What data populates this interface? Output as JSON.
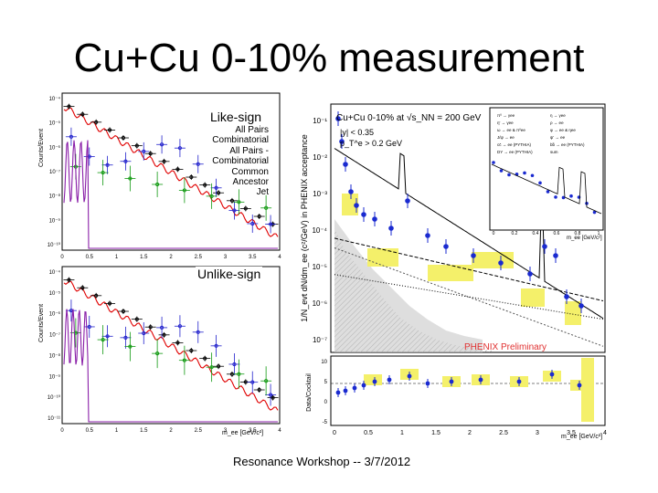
{
  "slide": {
    "title": "Cu+Cu 0-10% measurement",
    "footer": "Resonance Workshop -- 3/7/2012"
  },
  "left_plots": {
    "like_sign_label": "Like-sign",
    "unlike_sign_label": "Unlike-sign",
    "legend": [
      "All Pairs",
      "Combinatorial",
      "All Pairs -",
      "Combinatorial",
      "Common",
      "Ancestor",
      "Jet"
    ],
    "y_axis_label": "Counts/Event",
    "x_axis_label": "m_ee [GeV/c²]",
    "x_ticks": [
      "0",
      "0.5",
      "1",
      "1.5",
      "2",
      "2.5",
      "3",
      "3.5",
      "4"
    ],
    "top_y_ticks": [
      "10⁻⁴",
      "10⁻⁵",
      "10⁻⁶",
      "10⁻⁷",
      "10⁻⁸",
      "10⁻⁹",
      "10⁻¹⁰"
    ],
    "bottom_y_ticks": [
      "10⁻⁴",
      "10⁻⁵",
      "10⁻⁶",
      "10⁻⁷",
      "10⁻⁸",
      "10⁻⁹",
      "10⁻¹⁰",
      "10⁻¹¹"
    ],
    "colors": {
      "all_pairs": "#000000",
      "combinatorial": "#e00000",
      "subtracted": "#2222cc",
      "common_ancestor": "#119911",
      "jet": "#8a1fa8"
    }
  },
  "right_plot": {
    "header": "Cu+Cu 0-10% at √s_NN = 200 GeV",
    "cuts": [
      "|y| < 0.35",
      "p_T^e > 0.2 GeV"
    ],
    "y_axis_label": "1/N_evt dN/dm_ee (c²/GeV) in PHENIX acceptance",
    "x_axis_label": "m_ee [GeV/c²]",
    "y_ticks": [
      "10⁻¹",
      "10⁻²",
      "10⁻³",
      "10⁻⁴",
      "10⁻⁵",
      "10⁻⁶",
      "10⁻⁷"
    ],
    "x_ticks": [
      "0",
      "0.5",
      "1",
      "1.5",
      "2",
      "2.5",
      "3",
      "3.5",
      "4"
    ],
    "ratio_label": "Data/Cocktail",
    "ratio_ticks": [
      "10",
      "5",
      "0",
      "-5"
    ],
    "preliminary": "PHENIX Preliminary",
    "inset": {
      "x_label": "m_ee [GeV/c²]",
      "x_ticks": [
        "0",
        "0.2",
        "0.4",
        "0.6",
        "0.8",
        "1"
      ],
      "legend": [
        "π⁰ → γee",
        "η → γee",
        "η' → γee",
        "ρ → ee",
        "ω → ee & π⁰ee",
        "φ → ee & ηee",
        "J/ψ → ee",
        "ψ' → ee",
        "cc̄ → ee (PYTHIA)",
        "bb̄ → ee (PYTHIA)",
        "DY → ee (PYTHIA)",
        "sum"
      ]
    },
    "colors": {
      "data": "#1a2ad0",
      "band": "#f4f06a",
      "preliminary": "#e03030"
    }
  }
}
